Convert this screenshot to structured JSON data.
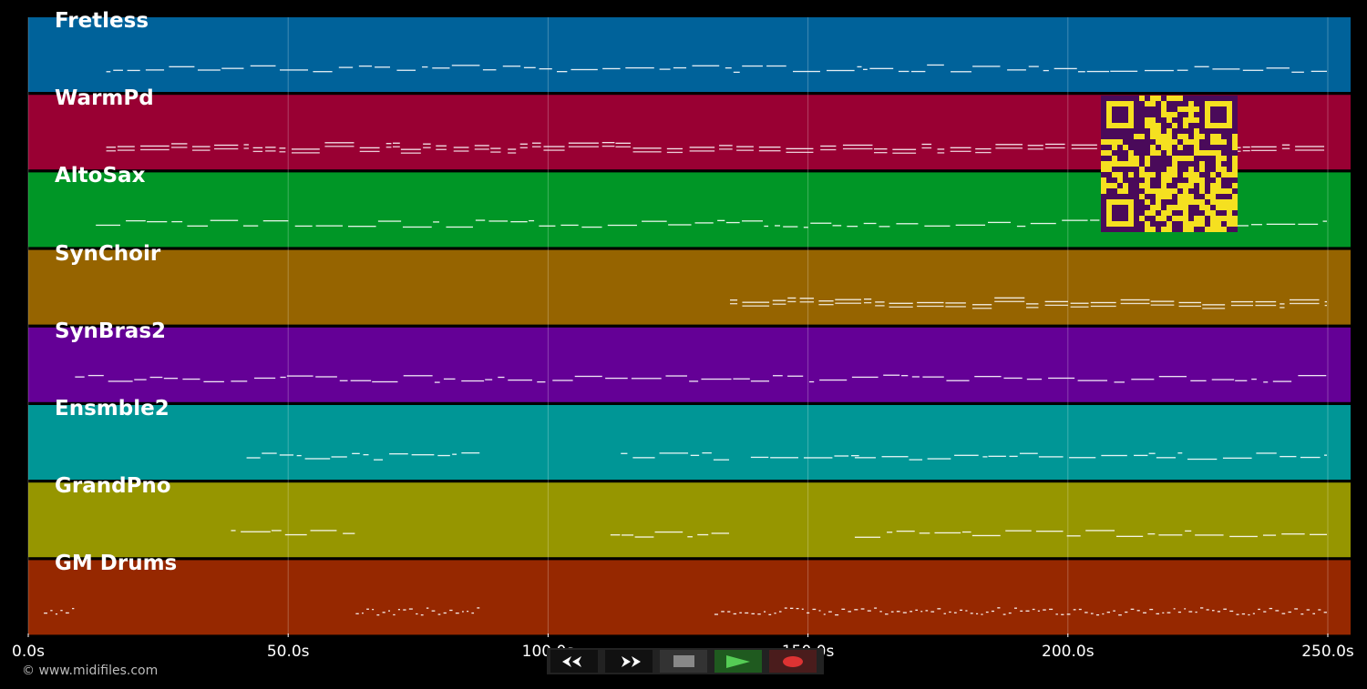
{
  "tracks": [
    {
      "name": "Fretless",
      "color": "#00629a",
      "ranges": [
        [
          15,
          250
        ]
      ]
    },
    {
      "name": "WarmPd",
      "color": "#990033",
      "ranges": [
        [
          15,
          250
        ]
      ]
    },
    {
      "name": "AltoSax",
      "color": "#009626",
      "ranges": [
        [
          13,
          250
        ]
      ]
    },
    {
      "name": "SynChoir",
      "color": "#966400",
      "ranges": [
        [
          135,
          250
        ]
      ]
    },
    {
      "name": "SynBras2",
      "color": "#640096",
      "ranges": [
        [
          9,
          250
        ]
      ]
    },
    {
      "name": "Ensmble2",
      "color": "#009696",
      "ranges": [
        [
          42,
          87
        ],
        [
          114,
          135
        ],
        [
          139,
          160
        ],
        [
          159,
          250
        ]
      ]
    },
    {
      "name": "GrandPno",
      "color": "#969600",
      "ranges": [
        [
          39,
          63
        ],
        [
          112,
          135
        ],
        [
          159,
          250
        ]
      ]
    },
    {
      "name": "GM Drums",
      "color": "#962800",
      "ranges": [
        [
          3,
          9
        ],
        [
          63,
          87
        ],
        [
          132,
          250
        ]
      ]
    }
  ],
  "axis": {
    "ticks": [
      "0.0s",
      "50.0s",
      "100.0s",
      "150.0s",
      "200.0s",
      "250.0s"
    ],
    "tick_values": [
      0,
      50,
      100,
      150,
      200,
      250
    ]
  },
  "copyright": "© www.midifiles.com",
  "transport": {
    "rewind": "rewind-icon",
    "forward": "fast-forward-icon",
    "stop": "stop-icon",
    "play": "play-icon",
    "record": "record-icon"
  }
}
